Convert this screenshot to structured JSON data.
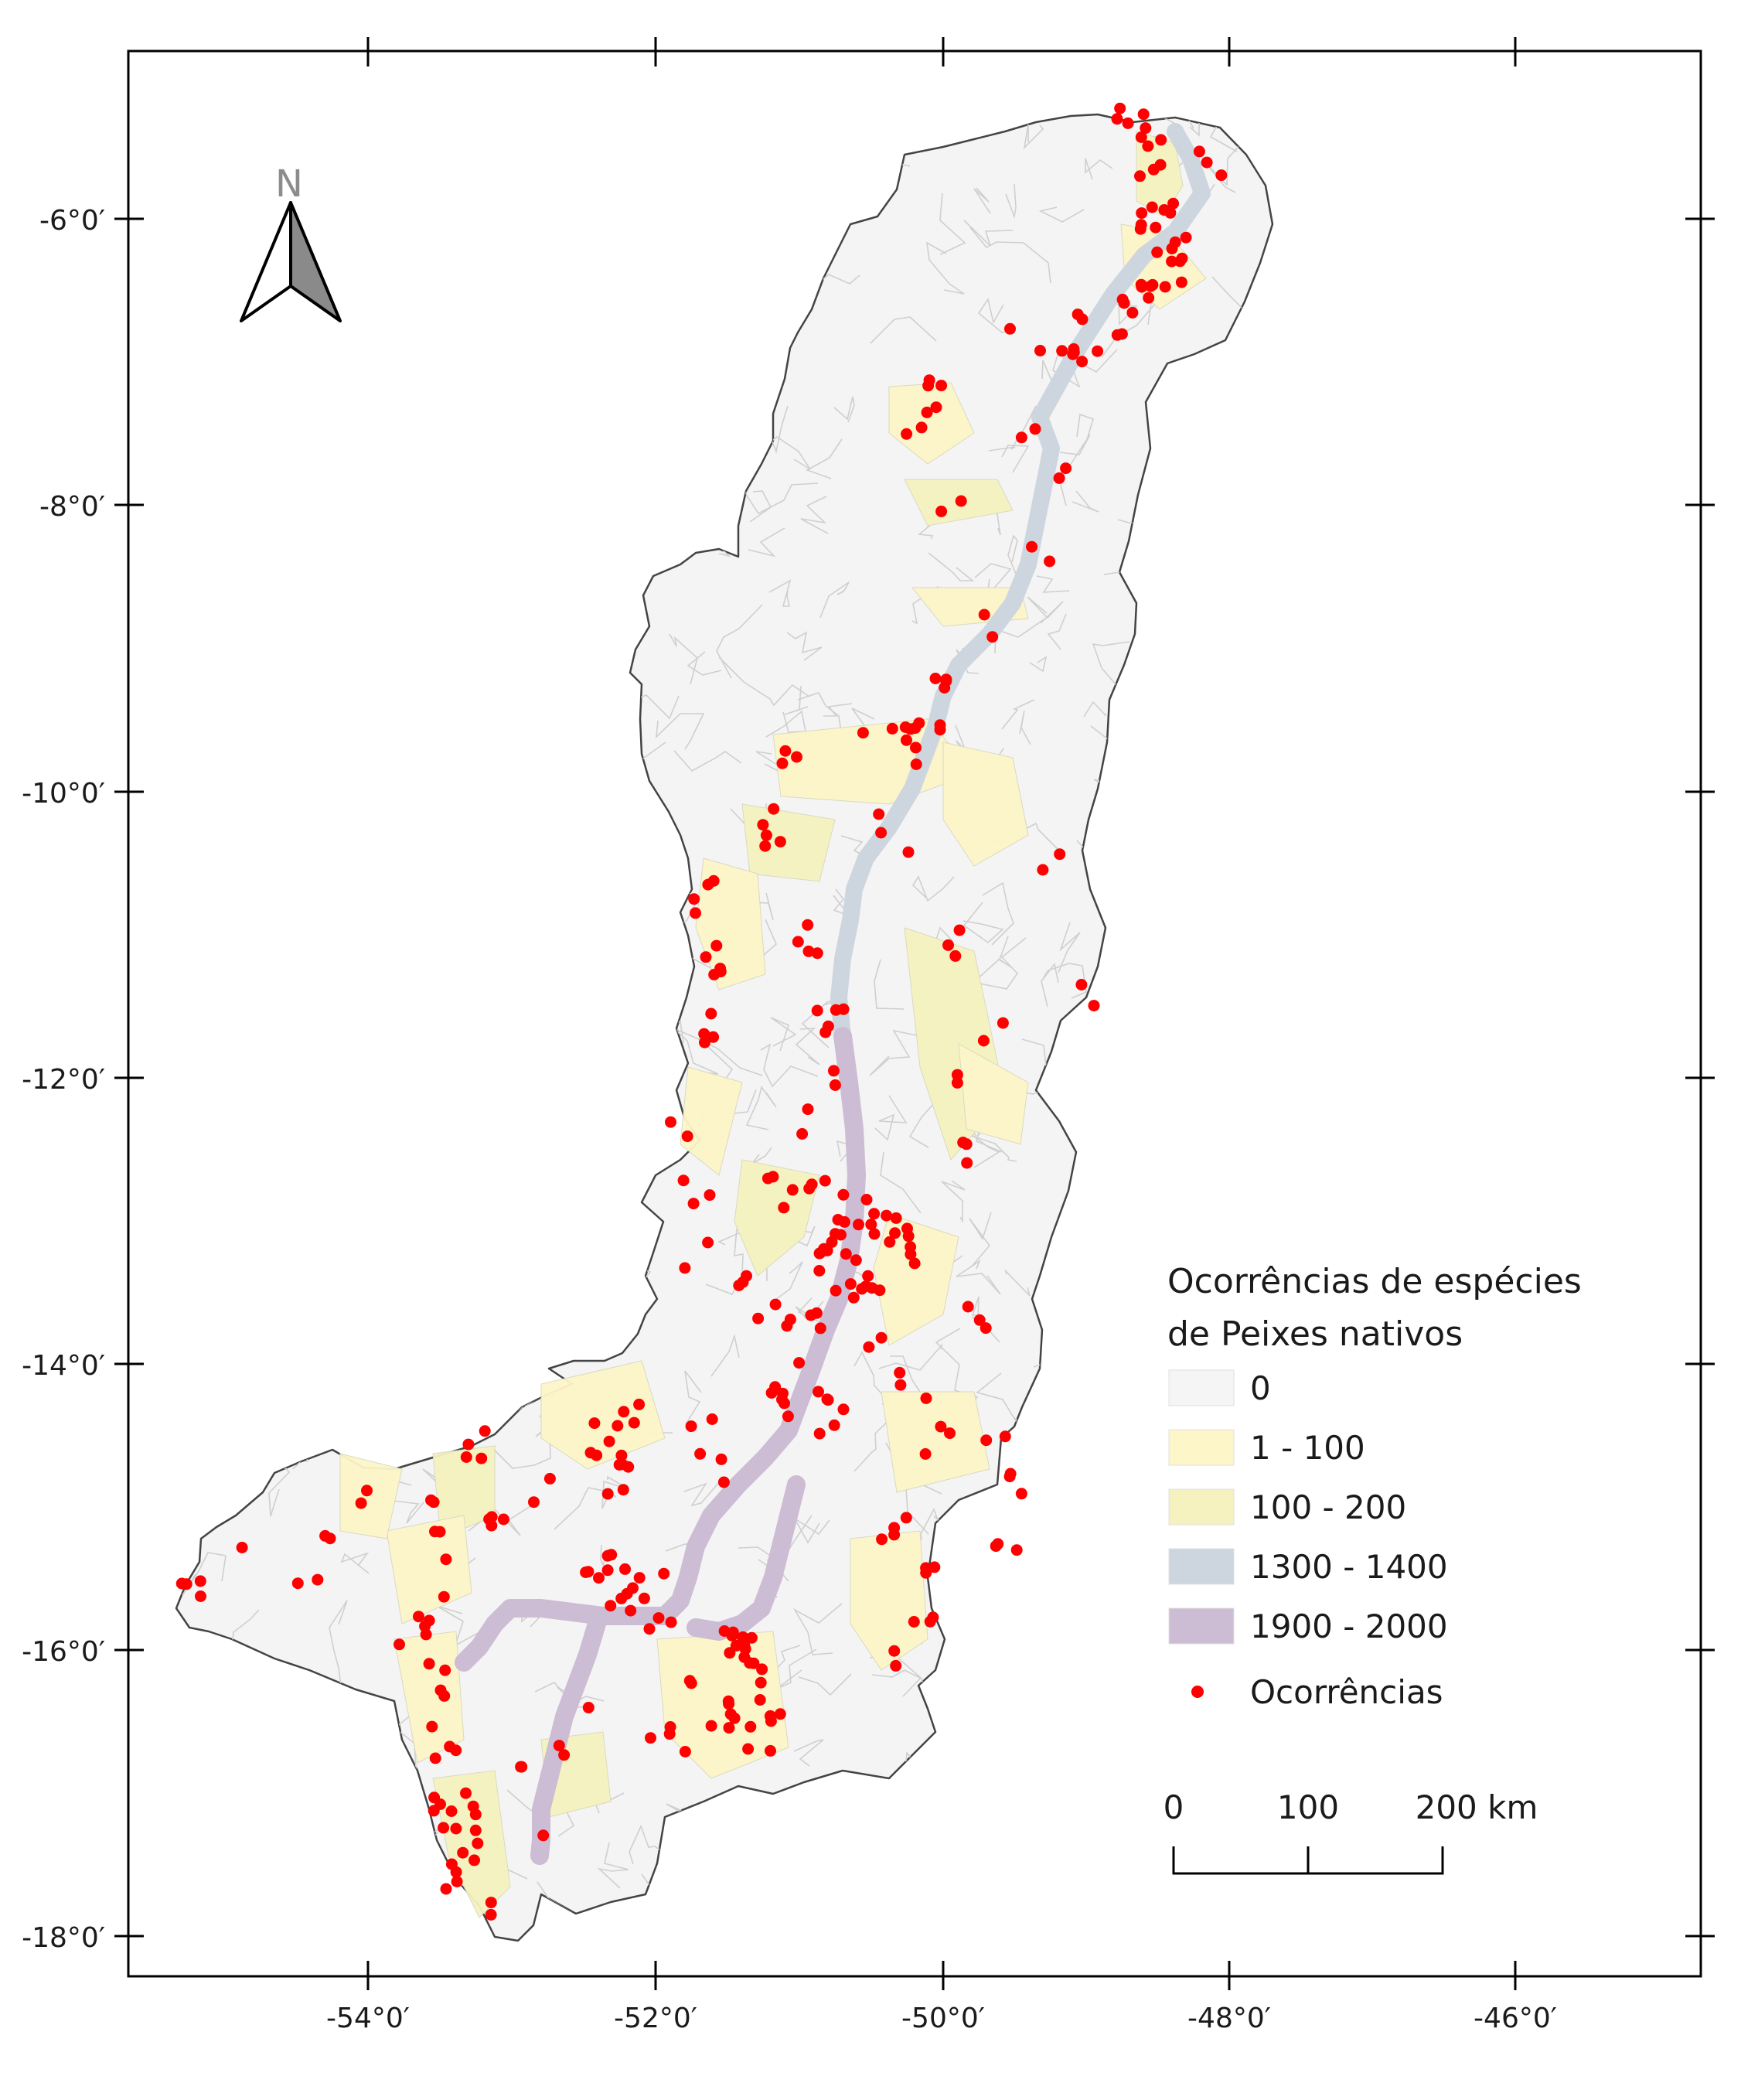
{
  "map": {
    "axes": {
      "y_labels": [
        "-6°0′",
        "-8°0′",
        "-10°0′",
        "-12°0′",
        "-14°0′",
        "-16°0′",
        "-18°0′"
      ],
      "x_labels": [
        "-54°0′",
        "-52°0′",
        "-50°0′",
        "-48°0′",
        "-46°0′"
      ]
    },
    "north_arrow": {
      "label": "N"
    },
    "legend": {
      "title_line1": "Ocorrências de espécies",
      "title_line2": "de Peixes nativos",
      "classes": [
        {
          "label": "0",
          "color": "#f5f5f5"
        },
        {
          "label": "1 - 100",
          "color": "#fdf6c8"
        },
        {
          "label": "100 - 200",
          "color": "#f6f2c0"
        },
        {
          "label": "1300 - 1400",
          "color": "#cdd6df"
        },
        {
          "label": "1900 - 2000",
          "color": "#ccbcd4"
        }
      ],
      "points_label": "Ocorrências",
      "point_color": "#ff0000"
    },
    "scale_bar": {
      "labels": [
        "0",
        "100",
        "200 km"
      ]
    }
  }
}
